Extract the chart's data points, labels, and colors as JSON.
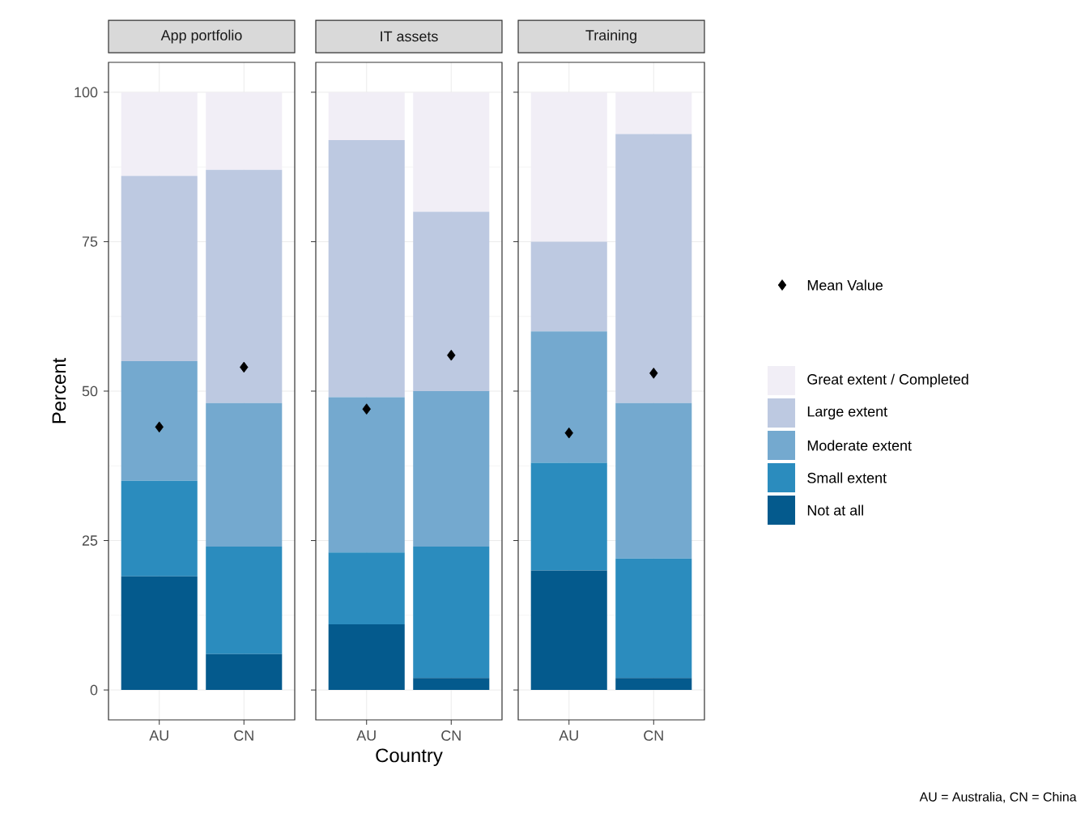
{
  "chart_data": [
    {
      "type": "bar",
      "title": "App portfolio",
      "ylabel": "Percent",
      "categories": [
        "AU",
        "CN"
      ],
      "stacked": true,
      "ylim": [
        -5,
        105
      ],
      "yticks": [
        0,
        25,
        50,
        75,
        100
      ],
      "grid": true,
      "series": [
        {
          "color": "#045a8d",
          "values": [
            19,
            6
          ]
        },
        {
          "color": "#2b8cbe",
          "values": [
            16,
            18
          ]
        },
        {
          "color": "#74a9cf",
          "values": [
            20,
            24
          ]
        },
        {
          "color": "#bdc9e1",
          "values": [
            31,
            39
          ]
        },
        {
          "color": "#f1eef6",
          "values": [
            14,
            13
          ]
        },
        {
          "type": "scatter",
          "marker": "diamond",
          "color": "#000000",
          "x": [
            "AU",
            "CN"
          ],
          "values": [
            44,
            54
          ]
        }
      ]
    },
    {
      "type": "bar",
      "title": "IT assets",
      "xlabel": "Country",
      "categories": [
        "AU",
        "CN"
      ],
      "stacked": true,
      "ylim": [
        -5,
        105
      ],
      "yticks": [
        0,
        25,
        50,
        75,
        100
      ],
      "grid": true,
      "tick_labels": "x",
      "series": [
        {
          "color": "#045a8d",
          "values": [
            11,
            2
          ]
        },
        {
          "color": "#2b8cbe",
          "values": [
            12,
            22
          ]
        },
        {
          "color": "#74a9cf",
          "values": [
            26,
            26
          ]
        },
        {
          "color": "#bdc9e1",
          "values": [
            43,
            30
          ]
        },
        {
          "color": "#f1eef6",
          "values": [
            8,
            20
          ]
        },
        {
          "type": "scatter",
          "marker": "diamond",
          "color": "#000000",
          "x": [
            "AU",
            "CN"
          ],
          "values": [
            47,
            56
          ]
        }
      ]
    },
    {
      "type": "bar",
      "title": "Training",
      "categories": [
        "AU",
        "CN"
      ],
      "stacked": true,
      "ylim": [
        -5,
        105
      ],
      "yticks": [
        0,
        25,
        50,
        75,
        100
      ],
      "grid": true,
      "tick_labels": "x",
      "legend": "right",
      "annotations": [
        "AU = Australia, CN = China"
      ],
      "series": [
        {
          "name": "Not at all",
          "color": "#045a8d",
          "values": [
            20,
            2
          ]
        },
        {
          "name": "Small extent",
          "color": "#2b8cbe",
          "values": [
            18,
            20
          ]
        },
        {
          "name": "Moderate extent",
          "color": "#74a9cf",
          "values": [
            22,
            26
          ]
        },
        {
          "name": "Large extent",
          "color": "#bdc9e1",
          "values": [
            15,
            45
          ]
        },
        {
          "name": "Great extent / Completed",
          "color": "#f1eef6",
          "values": [
            25,
            7
          ]
        },
        {
          "name": "Mean Value",
          "type": "scatter",
          "marker": "diamond",
          "color": "#000000",
          "x": [
            "AU",
            "CN"
          ],
          "values": [
            43,
            53
          ]
        }
      ]
    }
  ]
}
